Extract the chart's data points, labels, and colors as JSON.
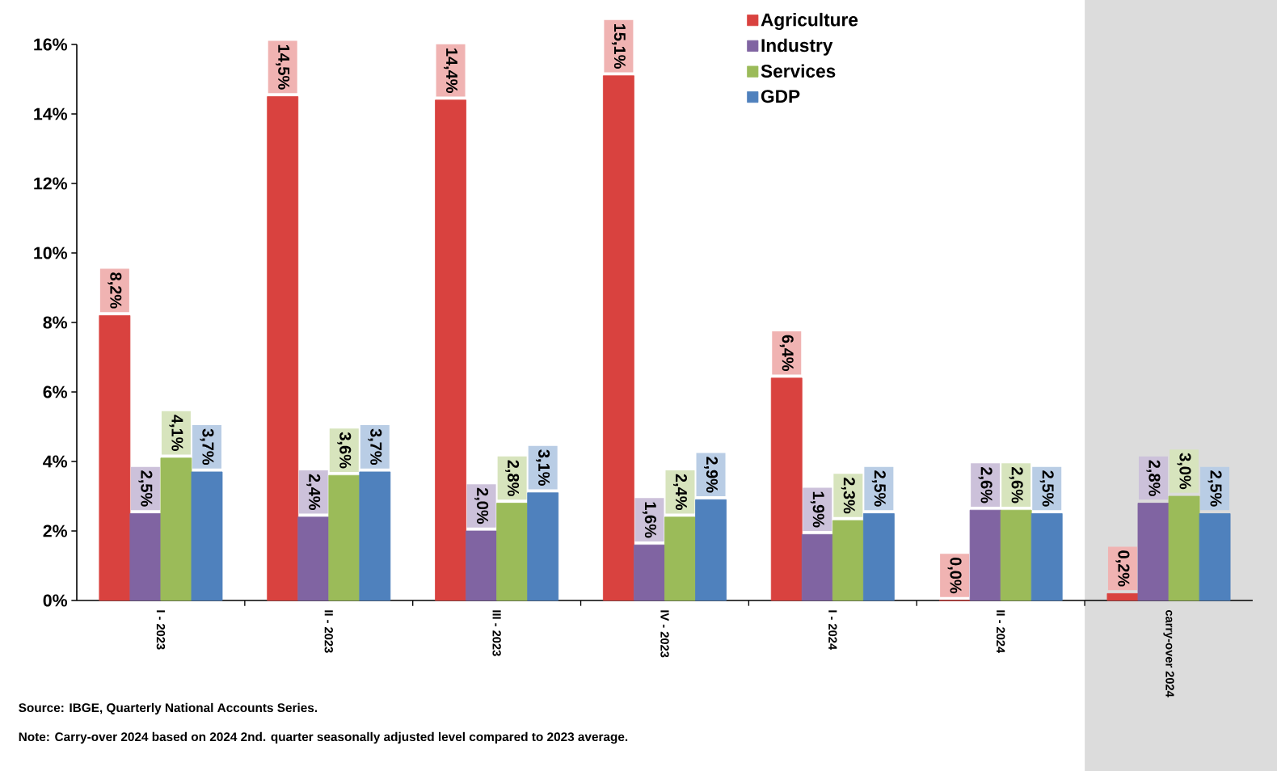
{
  "chart_data": {
    "type": "bar",
    "categories": [
      "I - 2023",
      "II - 2023",
      "III - 2023",
      "IV - 2023",
      "I - 2024",
      "II - 2024",
      "carry-over 2024"
    ],
    "series": [
      {
        "name": "Agriculture",
        "color": "#d9423f",
        "values": [
          8.2,
          14.5,
          14.4,
          15.1,
          6.4,
          0.0,
          0.2
        ],
        "value_labels": [
          "8,2%",
          "14,5%",
          "14,4%",
          "15,1%",
          "6,4%",
          "0,0%",
          "0,2%"
        ]
      },
      {
        "name": "Industry",
        "color": "#8064a2",
        "values": [
          2.5,
          2.4,
          2.0,
          1.6,
          1.9,
          2.6,
          2.8
        ],
        "value_labels": [
          "2,5%",
          "2,4%",
          "2,0%",
          "1,6%",
          "1,9%",
          "2,6%",
          "2,8%"
        ]
      },
      {
        "name": "Services",
        "color": "#9bbb59",
        "values": [
          4.1,
          3.6,
          2.8,
          2.4,
          2.3,
          2.6,
          3.0
        ],
        "value_labels": [
          "4,1%",
          "3,6%",
          "2,8%",
          "2,4%",
          "2,3%",
          "2,6%",
          "3,0%"
        ]
      },
      {
        "name": "GDP",
        "color": "#4f81bd",
        "values": [
          3.7,
          3.7,
          3.1,
          2.9,
          2.5,
          2.5,
          2.5
        ],
        "value_labels": [
          "3,7%",
          "3,7%",
          "3,1%",
          "2,9%",
          "2,5%",
          "2,5%",
          "2,5%"
        ]
      }
    ],
    "ylim": [
      0,
      16
    ],
    "yticks": [
      {
        "value": 0,
        "label": "0%"
      },
      {
        "value": 2,
        "label": "2%"
      },
      {
        "value": 4,
        "label": "4%"
      },
      {
        "value": 6,
        "label": "6%"
      },
      {
        "value": 8,
        "label": "8%"
      },
      {
        "value": 10,
        "label": "10%"
      },
      {
        "value": 12,
        "label": "12%"
      },
      {
        "value": 14,
        "label": "14%"
      },
      {
        "value": 16,
        "label": "16%"
      }
    ],
    "bands": [
      {
        "axis": "x",
        "from": "carry-over 2024",
        "to": "carry-over 2024",
        "color": "#dcdcdc"
      }
    ],
    "legend": "top",
    "annotations": [
      "Source: IBGE, Quarterly National Accounts Series.",
      "Note: Carry-over 2024 based on 2024 2nd. quarter seasonally adjusted level compared to 2023 average."
    ]
  }
}
